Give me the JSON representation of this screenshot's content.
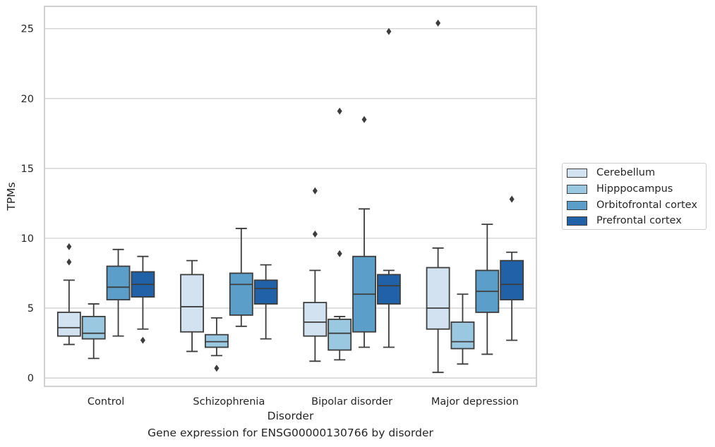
{
  "chart_data": {
    "type": "boxplot",
    "title": "",
    "caption": "Gene expression for ENSG00000130766 by disorder",
    "xlabel": "Disorder",
    "ylabel": "TPMs",
    "categories": [
      "Control",
      "Schizophrenia",
      "Bipolar disorder",
      "Major depression"
    ],
    "ylim": [
      -0.6,
      26.6
    ],
    "yticks": [
      0,
      5,
      10,
      15,
      20,
      25
    ],
    "grid": true,
    "legend_position": "right",
    "series": [
      {
        "name": "Cerebellum",
        "color": "#d3e2f1",
        "boxes": [
          {
            "whislo": 2.4,
            "q1": 3.0,
            "med": 3.6,
            "q3": 4.7,
            "whishi": 7.0,
            "fliers": [
              8.3,
              9.4
            ]
          },
          {
            "whislo": 1.9,
            "q1": 3.3,
            "med": 5.1,
            "q3": 7.4,
            "whishi": 8.4,
            "fliers": []
          },
          {
            "whislo": 1.2,
            "q1": 3.0,
            "med": 4.0,
            "q3": 5.4,
            "whishi": 7.7,
            "fliers": [
              10.3,
              13.4
            ]
          },
          {
            "whislo": 0.4,
            "q1": 3.5,
            "med": 5.0,
            "q3": 7.9,
            "whishi": 9.3,
            "fliers": [
              25.4
            ]
          }
        ]
      },
      {
        "name": "Hipppocampus",
        "color": "#9ac8e0",
        "boxes": [
          {
            "whislo": 1.4,
            "q1": 2.8,
            "med": 3.2,
            "q3": 4.4,
            "whishi": 5.3,
            "fliers": []
          },
          {
            "whislo": 1.6,
            "q1": 2.2,
            "med": 2.6,
            "q3": 3.1,
            "whishi": 4.3,
            "fliers": [
              0.7
            ]
          },
          {
            "whislo": 1.3,
            "q1": 2.0,
            "med": 3.2,
            "q3": 4.2,
            "whishi": 4.4,
            "fliers": [
              8.9,
              19.1
            ]
          },
          {
            "whislo": 1.0,
            "q1": 2.1,
            "med": 2.6,
            "q3": 4.0,
            "whishi": 6.0,
            "fliers": []
          }
        ]
      },
      {
        "name": "Orbitofrontal cortex",
        "color": "#5a9ec9",
        "boxes": [
          {
            "whislo": 3.0,
            "q1": 5.6,
            "med": 6.5,
            "q3": 8.0,
            "whishi": 9.2,
            "fliers": []
          },
          {
            "whislo": 3.7,
            "q1": 4.5,
            "med": 6.7,
            "q3": 7.5,
            "whishi": 10.7,
            "fliers": []
          },
          {
            "whislo": 2.2,
            "q1": 3.3,
            "med": 6.0,
            "q3": 8.7,
            "whishi": 12.1,
            "fliers": [
              18.5
            ]
          },
          {
            "whislo": 1.7,
            "q1": 4.7,
            "med": 6.2,
            "q3": 7.7,
            "whishi": 11.0,
            "fliers": []
          }
        ]
      },
      {
        "name": "Prefrontal cortex",
        "color": "#2161a8",
        "boxes": [
          {
            "whislo": 3.5,
            "q1": 5.8,
            "med": 6.7,
            "q3": 7.6,
            "whishi": 8.7,
            "fliers": [
              2.7
            ]
          },
          {
            "whislo": 2.8,
            "q1": 5.3,
            "med": 6.4,
            "q3": 7.0,
            "whishi": 8.1,
            "fliers": []
          },
          {
            "whislo": 2.2,
            "q1": 5.3,
            "med": 6.6,
            "q3": 7.4,
            "whishi": 7.7,
            "fliers": [
              24.8
            ]
          },
          {
            "whislo": 2.7,
            "q1": 5.6,
            "med": 6.7,
            "q3": 8.4,
            "whishi": 9.0,
            "fliers": [
              12.8
            ]
          }
        ]
      }
    ]
  }
}
